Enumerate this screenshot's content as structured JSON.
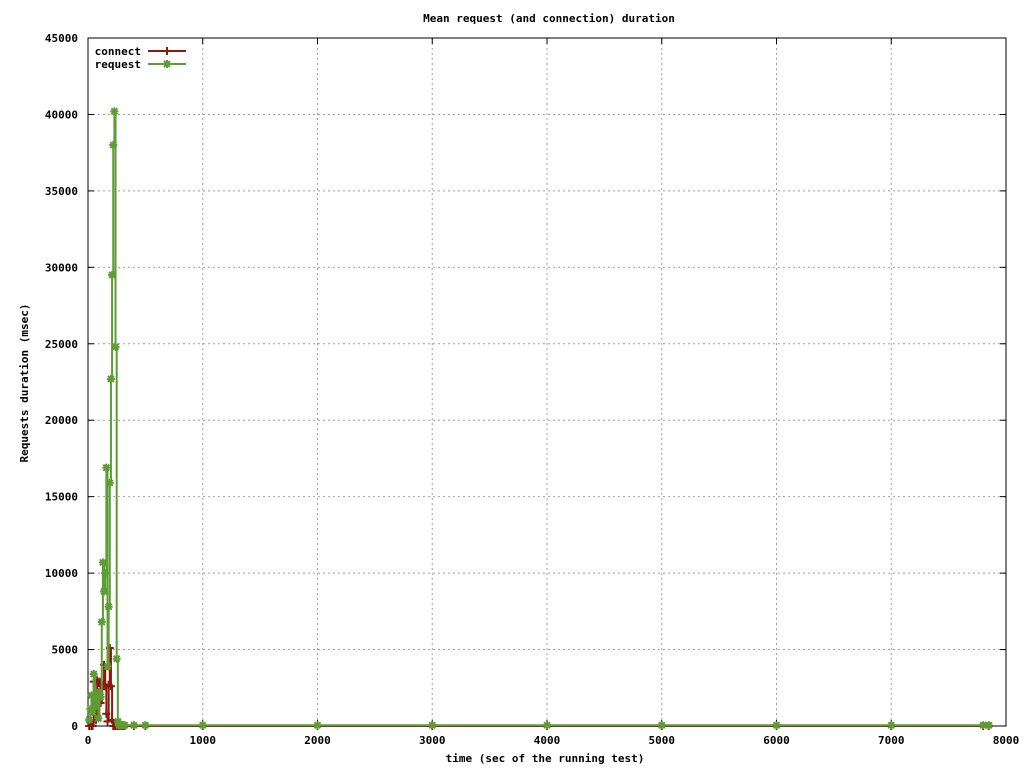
{
  "chart_data": {
    "type": "line",
    "title": "Mean request (and connection) duration",
    "xlabel": "time (sec of the running test)",
    "ylabel": "Requests duration (msec)",
    "xlim": [
      0,
      8000
    ],
    "ylim": [
      0,
      45000
    ],
    "xticks": [
      0,
      1000,
      2000,
      3000,
      4000,
      5000,
      6000,
      7000,
      8000
    ],
    "yticks": [
      0,
      5000,
      10000,
      15000,
      20000,
      25000,
      30000,
      35000,
      40000,
      45000
    ],
    "grid": true,
    "legend_position": "top-left",
    "series": [
      {
        "name": "connect",
        "color": "#8b1a0e",
        "marker": "plus",
        "x": [
          10,
          20,
          30,
          40,
          50,
          60,
          70,
          80,
          90,
          100,
          110,
          120,
          130,
          140,
          150,
          160,
          170,
          180,
          190,
          200,
          210,
          220,
          230,
          240,
          250,
          260,
          270,
          280,
          290,
          300,
          310,
          320,
          400,
          500,
          1000,
          2000,
          3000,
          4000,
          5000,
          6000,
          7000,
          7800,
          7850
        ],
        "y": [
          0,
          300,
          0,
          0,
          2900,
          1200,
          400,
          3000,
          2800,
          2900,
          1500,
          2400,
          2600,
          4000,
          2700,
          800,
          300,
          2700,
          5100,
          2600,
          400,
          0,
          0,
          0,
          0,
          0,
          0,
          0,
          0,
          0,
          0,
          0,
          0,
          0,
          0,
          0,
          0,
          0,
          0,
          0,
          0,
          0,
          0
        ]
      },
      {
        "name": "request",
        "color": "#5e9c36",
        "marker": "star",
        "x": [
          10,
          20,
          30,
          40,
          50,
          60,
          70,
          80,
          90,
          100,
          110,
          120,
          130,
          140,
          150,
          160,
          170,
          180,
          190,
          200,
          210,
          220,
          230,
          240,
          250,
          260,
          270,
          280,
          290,
          300,
          310,
          320,
          400,
          500,
          1000,
          2000,
          3000,
          4000,
          5000,
          6000,
          7000,
          7800,
          7850
        ],
        "y": [
          400,
          1100,
          2000,
          900,
          3400,
          1800,
          1300,
          2000,
          500,
          2200,
          1900,
          6800,
          10700,
          8800,
          10000,
          16900,
          3900,
          7800,
          15900,
          22700,
          29500,
          38000,
          40200,
          24800,
          4400,
          300,
          50,
          50,
          50,
          50,
          50,
          50,
          50,
          50,
          50,
          50,
          50,
          50,
          50,
          50,
          50,
          50,
          50
        ]
      }
    ]
  }
}
